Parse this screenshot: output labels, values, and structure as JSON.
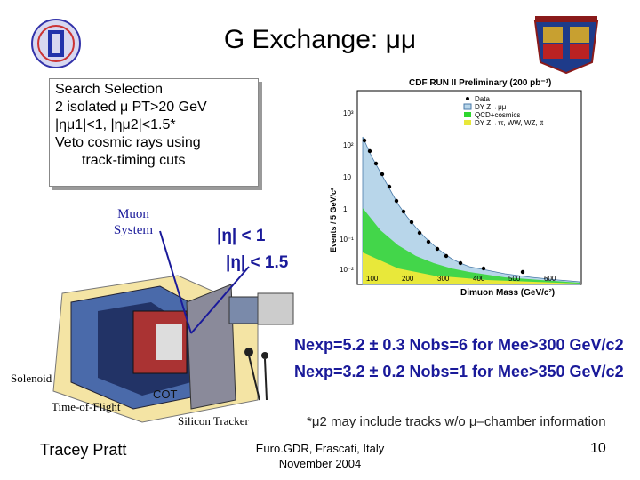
{
  "title": "G Exchange: μμ",
  "selection": {
    "line1": "Search Selection",
    "line2": "2 isolated μ PT>20 GeV",
    "line3": "|ημ1|<1, |ημ2|<1.5*",
    "line4": "Veto cosmic rays using",
    "line5": "track-timing cuts"
  },
  "detector": {
    "muon_system": "Muon System",
    "eta1": "|η| < 1",
    "eta2": "|η| < 1.5",
    "solenoid": "Solenoid",
    "time_of_flight": "Time-of-Flight",
    "cot": "COT",
    "silicon_tracker": "Silicon Tracker"
  },
  "results": {
    "line1": "Nexp=5.2 ± 0.3 Nobs=6 for Mee>300 GeV/c2",
    "line2": "Nexp=3.2 ± 0.2 Nobs=1 for Mee>350 GeV/c2"
  },
  "note": "*μ2 may include tracks w/o μ–chamber information",
  "footer": {
    "author": "Tracey Pratt",
    "conf_line1": "Euro.GDR, Frascati, Italy",
    "conf_line2": "November 2004",
    "page": "10"
  },
  "plot": {
    "title": "CDF RUN II Preliminary (200 pb⁻¹)",
    "xlabel": "Dimuon Mass (GeV/c²)",
    "ylabel": "Events / 5 GeV/c²",
    "xticks": [
      "100",
      "200",
      "300",
      "400",
      "500",
      "600"
    ],
    "yticks": [
      "10³",
      "10²",
      "10",
      "1",
      "10⁻¹",
      "10⁻²"
    ],
    "legend": [
      "Data",
      "DY Z→μμ",
      "QCD+cosmics",
      "DY Z→ττ, WW, WZ, tt"
    ]
  }
}
